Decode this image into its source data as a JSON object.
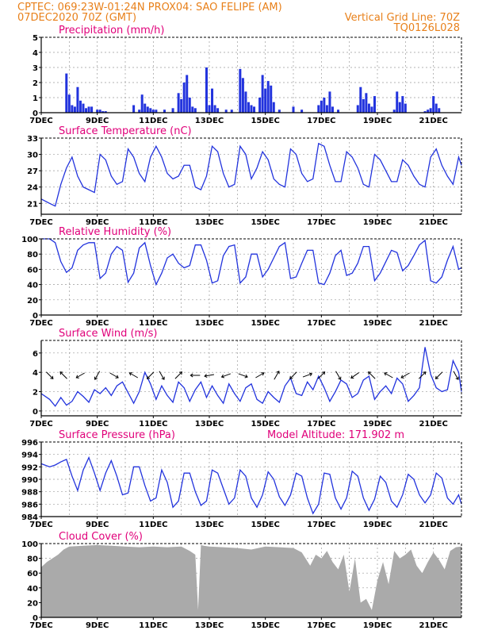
{
  "header": {
    "line1_left": "CPTEC:   069:23W-01:24N   PROX04: SAO FELIPE (AM)",
    "line2_left": "07DEC2020 70Z (GMT)",
    "line2_right": "Vertical Grid Line: 70Z",
    "line3_right": "TQ0126L028"
  },
  "colors": {
    "header": "#e8801a",
    "title": "#e0007a",
    "series": "#2233dd",
    "cloud": "#aaaaaa"
  },
  "chart_data": [
    {
      "type": "bar",
      "title": "Precipitation (mm/h)",
      "ylim": [
        0,
        5
      ],
      "yticks": [
        0,
        1,
        2,
        3,
        4,
        5
      ],
      "xlim": [
        7.0,
        22.0
      ],
      "xticks": [
        "7DEC",
        "9DEC",
        "11DEC",
        "13DEC",
        "15DEC",
        "17DEC",
        "19DEC",
        "21DEC"
      ],
      "x": [
        7.9,
        8.0,
        8.1,
        8.2,
        8.3,
        8.4,
        8.5,
        8.6,
        8.7,
        8.8,
        9.0,
        9.1,
        9.2,
        9.3,
        10.3,
        10.5,
        10.6,
        10.7,
        10.8,
        10.9,
        11.0,
        11.1,
        11.4,
        11.7,
        11.9,
        12.0,
        12.1,
        12.2,
        12.3,
        12.4,
        12.5,
        12.9,
        13.0,
        13.1,
        13.2,
        13.3,
        13.6,
        13.8,
        14.1,
        14.2,
        14.3,
        14.4,
        14.5,
        14.6,
        14.8,
        14.9,
        15.0,
        15.1,
        15.2,
        15.3,
        15.5,
        16.0,
        16.3,
        16.9,
        17.0,
        17.1,
        17.2,
        17.3,
        17.4,
        17.6,
        18.3,
        18.4,
        18.5,
        18.6,
        18.7,
        18.8,
        18.9,
        19.6,
        19.7,
        19.8,
        19.9,
        20.0,
        20.7,
        20.8,
        20.9,
        21.0,
        21.1,
        21.2
      ],
      "values": [
        2.6,
        1.2,
        0.5,
        0.4,
        1.7,
        0.8,
        0.6,
        0.3,
        0.4,
        0.4,
        0.2,
        0.2,
        0.1,
        0.1,
        0.5,
        0.2,
        1.2,
        0.6,
        0.4,
        0.3,
        0.2,
        0.2,
        0.2,
        0.3,
        1.3,
        0.9,
        2.0,
        2.5,
        1.0,
        0.4,
        0.3,
        3.0,
        0.5,
        1.6,
        0.5,
        0.3,
        0.2,
        0.2,
        2.9,
        2.3,
        1.4,
        0.7,
        0.5,
        0.4,
        1.0,
        2.5,
        1.6,
        2.1,
        1.8,
        0.7,
        0.2,
        0.4,
        0.2,
        0.5,
        0.8,
        1.0,
        0.5,
        1.4,
        0.4,
        0.2,
        0.5,
        1.7,
        0.9,
        1.3,
        0.6,
        0.4,
        1.1,
        0.2,
        1.4,
        0.7,
        1.1,
        0.6,
        0.1,
        0.2,
        0.3,
        1.1,
        0.6,
        0.3
      ]
    },
    {
      "type": "line",
      "title": "Surface Temperature (nC)",
      "ylim": [
        19,
        33
      ],
      "yticks": [
        21,
        24,
        27,
        30,
        33
      ],
      "xlim": [
        7.0,
        22.0
      ],
      "xticks": [
        "7DEC",
        "9DEC",
        "11DEC",
        "13DEC",
        "15DEC",
        "17DEC",
        "19DEC",
        "21DEC"
      ],
      "x": [
        7.0,
        7.3,
        7.5,
        7.7,
        7.9,
        8.1,
        8.3,
        8.5,
        8.7,
        8.9,
        9.1,
        9.3,
        9.5,
        9.7,
        9.9,
        10.1,
        10.3,
        10.5,
        10.7,
        10.9,
        11.1,
        11.3,
        11.5,
        11.7,
        11.9,
        12.1,
        12.3,
        12.5,
        12.7,
        12.9,
        13.1,
        13.3,
        13.5,
        13.7,
        13.9,
        14.1,
        14.3,
        14.5,
        14.7,
        14.9,
        15.1,
        15.3,
        15.5,
        15.7,
        15.9,
        16.1,
        16.3,
        16.5,
        16.7,
        16.9,
        17.1,
        17.3,
        17.5,
        17.7,
        17.9,
        18.1,
        18.3,
        18.5,
        18.7,
        18.9,
        19.1,
        19.3,
        19.5,
        19.7,
        19.9,
        20.1,
        20.3,
        20.5,
        20.7,
        20.9,
        21.1,
        21.3,
        21.5,
        21.7,
        21.9,
        22.0
      ],
      "values": [
        21.8,
        21.0,
        20.5,
        24.5,
        27.5,
        29.5,
        26.0,
        24.0,
        23.5,
        23.0,
        30.0,
        29.0,
        26.0,
        24.5,
        25.0,
        31.0,
        29.5,
        26.5,
        25.0,
        29.5,
        31.5,
        29.5,
        26.5,
        25.5,
        26.0,
        28.0,
        28.0,
        24.0,
        23.5,
        26.0,
        31.5,
        30.5,
        26.5,
        24.0,
        24.5,
        31.5,
        30.0,
        25.5,
        27.5,
        30.5,
        29.0,
        25.5,
        24.5,
        24.0,
        31.0,
        30.0,
        26.5,
        25.0,
        25.5,
        32.0,
        31.5,
        28.0,
        25.0,
        25.0,
        30.5,
        29.5,
        27.5,
        24.5,
        24.0,
        30.0,
        29.0,
        27.0,
        25.0,
        25.0,
        29.0,
        28.0,
        26.0,
        24.5,
        24.0,
        29.5,
        31.0,
        28.0,
        26.0,
        24.5,
        29.5,
        28.0
      ]
    },
    {
      "type": "line",
      "title": "Relative Humidity (%)",
      "ylim": [
        0,
        100
      ],
      "yticks": [
        0,
        20,
        40,
        60,
        80,
        100
      ],
      "xlim": [
        7.0,
        22.0
      ],
      "xticks": [
        "7DEC",
        "9DEC",
        "11DEC",
        "13DEC",
        "15DEC",
        "17DEC",
        "19DEC",
        "21DEC"
      ],
      "x": [
        7.0,
        7.3,
        7.5,
        7.7,
        7.9,
        8.1,
        8.3,
        8.5,
        8.7,
        8.9,
        9.1,
        9.3,
        9.5,
        9.7,
        9.9,
        10.1,
        10.3,
        10.5,
        10.7,
        10.9,
        11.1,
        11.3,
        11.5,
        11.7,
        11.9,
        12.1,
        12.3,
        12.5,
        12.7,
        12.9,
        13.1,
        13.3,
        13.5,
        13.7,
        13.9,
        14.1,
        14.3,
        14.5,
        14.7,
        14.9,
        15.1,
        15.3,
        15.5,
        15.7,
        15.9,
        16.1,
        16.3,
        16.5,
        16.7,
        16.9,
        17.1,
        17.3,
        17.5,
        17.7,
        17.9,
        18.1,
        18.3,
        18.5,
        18.7,
        18.9,
        19.1,
        19.3,
        19.5,
        19.7,
        19.9,
        20.1,
        20.3,
        20.5,
        20.7,
        20.9,
        21.1,
        21.3,
        21.5,
        21.7,
        21.9,
        22.0
      ],
      "values": [
        100,
        100,
        95,
        70,
        56,
        62,
        85,
        92,
        95,
        95,
        48,
        55,
        80,
        90,
        85,
        43,
        55,
        88,
        95,
        65,
        40,
        55,
        75,
        80,
        68,
        62,
        65,
        92,
        92,
        72,
        42,
        45,
        78,
        90,
        92,
        42,
        50,
        80,
        80,
        50,
        60,
        75,
        90,
        95,
        48,
        50,
        68,
        85,
        85,
        42,
        40,
        55,
        78,
        85,
        52,
        55,
        68,
        90,
        90,
        45,
        55,
        70,
        85,
        82,
        58,
        65,
        78,
        92,
        98,
        45,
        42,
        50,
        72,
        90,
        60,
        62
      ]
    },
    {
      "type": "line",
      "title": "Surface Wind (m/s)",
      "ylim": [
        -0.5,
        7.3
      ],
      "yticks": [
        0,
        2,
        4,
        6
      ],
      "xlim": [
        7.0,
        22.0
      ],
      "xticks": [
        "7DEC",
        "9DEC",
        "11DEC",
        "13DEC",
        "15DEC",
        "17DEC",
        "19DEC",
        "21DEC"
      ],
      "x": [
        7.0,
        7.3,
        7.5,
        7.7,
        7.9,
        8.1,
        8.3,
        8.5,
        8.7,
        8.9,
        9.1,
        9.3,
        9.5,
        9.7,
        9.9,
        10.1,
        10.3,
        10.5,
        10.7,
        10.9,
        11.1,
        11.3,
        11.5,
        11.7,
        11.9,
        12.1,
        12.3,
        12.5,
        12.7,
        12.9,
        13.1,
        13.3,
        13.5,
        13.7,
        13.9,
        14.1,
        14.3,
        14.5,
        14.7,
        14.9,
        15.1,
        15.3,
        15.5,
        15.7,
        15.9,
        16.1,
        16.3,
        16.5,
        16.7,
        16.9,
        17.1,
        17.3,
        17.5,
        17.7,
        17.9,
        18.1,
        18.3,
        18.5,
        18.7,
        18.9,
        19.1,
        19.3,
        19.5,
        19.7,
        19.9,
        20.1,
        20.3,
        20.5,
        20.7,
        20.9,
        21.1,
        21.3,
        21.5,
        21.7,
        21.9,
        22.0
      ],
      "values": [
        1.8,
        1.2,
        0.5,
        1.4,
        0.6,
        1.0,
        2.0,
        1.5,
        0.9,
        2.2,
        1.8,
        2.4,
        1.6,
        2.6,
        3.0,
        1.9,
        0.8,
        2.0,
        4.0,
        2.8,
        1.2,
        2.6,
        1.6,
        0.9,
        3.0,
        2.4,
        1.0,
        2.2,
        3.0,
        1.4,
        2.6,
        1.6,
        0.8,
        2.8,
        1.8,
        1.0,
        2.4,
        2.8,
        1.2,
        0.8,
        2.0,
        1.4,
        0.9,
        2.6,
        3.4,
        1.8,
        1.6,
        3.0,
        2.2,
        3.6,
        2.4,
        1.0,
        2.0,
        3.2,
        2.8,
        1.4,
        1.8,
        3.2,
        3.6,
        1.2,
        2.0,
        2.6,
        1.8,
        3.4,
        2.8,
        1.0,
        1.6,
        2.4,
        6.6,
        3.8,
        2.4,
        2.0,
        2.2,
        5.2,
        4.0,
        2.0
      ],
      "vectors_x": [
        7.3,
        7.8,
        8.4,
        9.0,
        9.6,
        10.3,
        10.9,
        11.3,
        11.9,
        12.5,
        13.0,
        13.6,
        14.2,
        14.8,
        15.4,
        16.0,
        16.5,
        17.0,
        17.6,
        18.2,
        18.8,
        19.4,
        20.0,
        20.6,
        21.2,
        21.8
      ],
      "vectors_angle_deg": [
        315,
        135,
        210,
        240,
        330,
        150,
        225,
        300,
        45,
        180,
        190,
        200,
        340,
        30,
        60,
        225,
        20,
        45,
        300,
        215,
        135,
        150,
        210,
        45,
        225,
        300
      ]
    },
    {
      "type": "line",
      "title": "Surface Pressure (hPa)",
      "annotation": "Model Altitude: 171.902 m",
      "ylim": [
        984,
        996
      ],
      "yticks": [
        984,
        986,
        988,
        990,
        992,
        994,
        996
      ],
      "xlim": [
        7.0,
        22.0
      ],
      "xticks": [
        "7DEC",
        "9DEC",
        "11DEC",
        "13DEC",
        "15DEC",
        "17DEC",
        "19DEC",
        "21DEC"
      ],
      "x": [
        7.0,
        7.3,
        7.5,
        7.7,
        7.9,
        8.1,
        8.3,
        8.5,
        8.7,
        8.9,
        9.1,
        9.3,
        9.5,
        9.7,
        9.9,
        10.1,
        10.3,
        10.5,
        10.7,
        10.9,
        11.1,
        11.3,
        11.5,
        11.7,
        11.9,
        12.1,
        12.3,
        12.5,
        12.7,
        12.9,
        13.1,
        13.3,
        13.5,
        13.7,
        13.9,
        14.1,
        14.3,
        14.5,
        14.7,
        14.9,
        15.1,
        15.3,
        15.5,
        15.7,
        15.9,
        16.1,
        16.3,
        16.5,
        16.7,
        16.9,
        17.1,
        17.3,
        17.5,
        17.7,
        17.9,
        18.1,
        18.3,
        18.5,
        18.7,
        18.9,
        19.1,
        19.3,
        19.5,
        19.7,
        19.9,
        20.1,
        20.3,
        20.5,
        20.7,
        20.9,
        21.1,
        21.3,
        21.5,
        21.7,
        21.9,
        22.0
      ],
      "values": [
        992.5,
        992.0,
        992.3,
        992.8,
        993.2,
        990.5,
        988.2,
        991.5,
        993.5,
        991.0,
        988.2,
        991.0,
        993.0,
        990.5,
        987.5,
        987.8,
        992.0,
        992.0,
        989.0,
        986.5,
        987.0,
        991.5,
        989.5,
        985.5,
        986.5,
        991.0,
        991.0,
        988.0,
        985.8,
        986.5,
        991.5,
        991.0,
        988.5,
        986.0,
        987.0,
        991.5,
        990.5,
        987.0,
        985.5,
        987.5,
        991.2,
        990.0,
        987.2,
        985.8,
        987.5,
        991.0,
        990.5,
        987.0,
        984.5,
        986.0,
        991.0,
        990.8,
        987.0,
        985.2,
        987.0,
        991.3,
        990.5,
        987.0,
        985.0,
        986.8,
        990.5,
        989.5,
        986.5,
        985.5,
        987.5,
        990.8,
        990.0,
        987.5,
        986.2,
        987.5,
        991.0,
        990.2,
        987.0,
        986.0,
        987.5,
        986.0
      ]
    },
    {
      "type": "area",
      "title": "Cloud Cover (%)",
      "ylim": [
        0,
        100
      ],
      "yticks": [
        0,
        20,
        40,
        60,
        80,
        100
      ],
      "xlim": [
        7.0,
        22.0
      ],
      "xticks": [
        "7DEC",
        "9DEC",
        "11DEC",
        "13DEC",
        "15DEC",
        "17DEC",
        "19DEC",
        "21DEC"
      ],
      "x": [
        7.0,
        7.2,
        7.4,
        7.6,
        7.8,
        8.0,
        8.5,
        9.0,
        9.5,
        10.0,
        10.5,
        11.0,
        11.5,
        12.0,
        12.3,
        12.5,
        12.6,
        12.7,
        12.8,
        13.0,
        13.5,
        14.0,
        14.5,
        15.0,
        15.5,
        16.0,
        16.3,
        16.6,
        16.8,
        17.0,
        17.2,
        17.4,
        17.6,
        17.8,
        18.0,
        18.2,
        18.4,
        18.6,
        18.8,
        19.0,
        19.2,
        19.4,
        19.6,
        19.8,
        20.0,
        20.2,
        20.4,
        20.6,
        20.8,
        21.0,
        21.2,
        21.4,
        21.6,
        21.8,
        22.0
      ],
      "values": [
        68,
        75,
        80,
        85,
        92,
        96,
        97,
        98,
        97,
        96,
        95,
        96,
        95,
        96,
        90,
        85,
        10,
        98,
        97,
        96,
        95,
        94,
        92,
        96,
        95,
        94,
        88,
        70,
        85,
        80,
        90,
        75,
        65,
        85,
        35,
        80,
        20,
        25,
        10,
        50,
        75,
        45,
        90,
        80,
        85,
        92,
        70,
        60,
        75,
        88,
        78,
        65,
        90,
        95,
        96
      ]
    }
  ]
}
